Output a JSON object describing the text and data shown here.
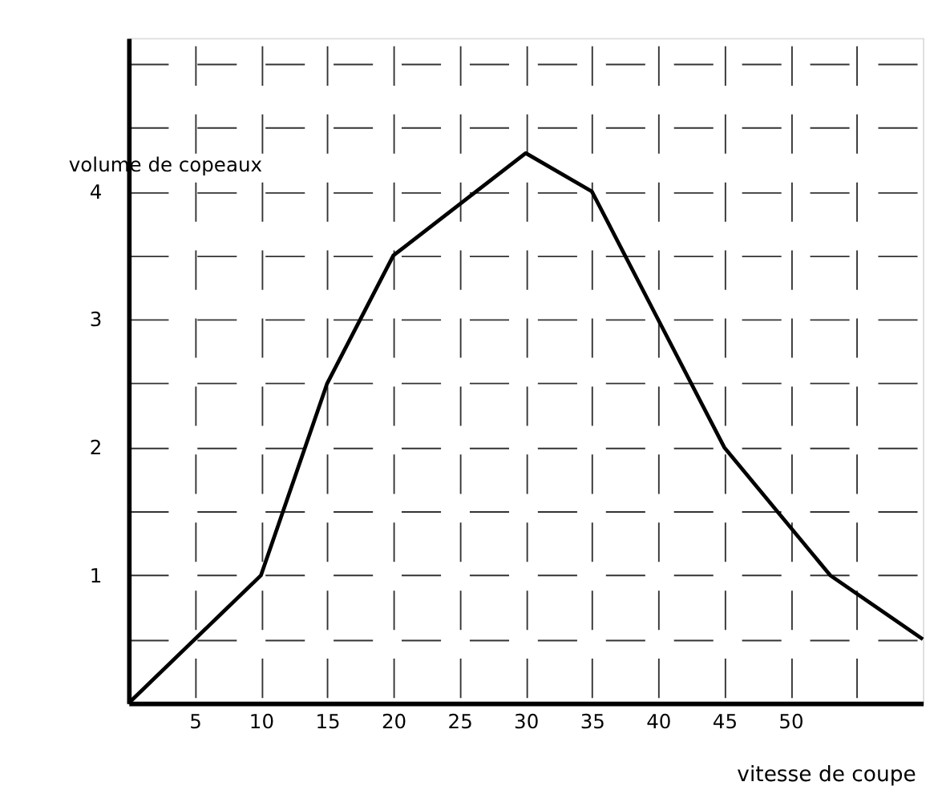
{
  "chart_data": {
    "type": "line",
    "xlabel": "vitesse de coupe",
    "ylabel": "volume de copeaux",
    "x": [
      0,
      10,
      15,
      20,
      30,
      35,
      40,
      45,
      53,
      60
    ],
    "series": [
      {
        "color": "#000000",
        "values": [
          0,
          1,
          2.5,
          3.5,
          4.3,
          4,
          3,
          2,
          1,
          0.5
        ]
      }
    ],
    "xlim": [
      0,
      60
    ],
    "ylim": [
      0,
      5.2
    ],
    "xticks": [
      5,
      10,
      15,
      20,
      25,
      30,
      35,
      40,
      45,
      50,
      {
        "value": 55,
        "label": null
      }
    ],
    "yticks": [
      {
        "value": 0.5,
        "label": null
      },
      1,
      {
        "value": 1.5,
        "label": null
      },
      2,
      {
        "value": 2.5,
        "label": null
      },
      3,
      {
        "value": 3.5,
        "label": null
      },
      4,
      {
        "value": 4.5,
        "label": null
      },
      {
        "value": 5,
        "label": null
      }
    ],
    "grid": true,
    "marker": "none",
    "line_style": "solid"
  }
}
